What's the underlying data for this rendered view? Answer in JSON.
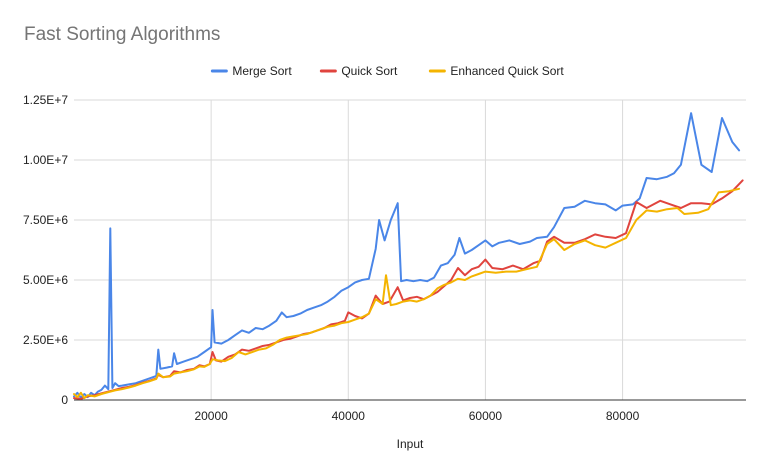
{
  "chart_data": {
    "type": "line",
    "title": "Fast Sorting Algorithms",
    "xlabel": "Input",
    "ylabel": "",
    "xlim": [
      0,
      98000
    ],
    "ylim": [
      0,
      12500000
    ],
    "x_ticks": [
      20000,
      40000,
      60000,
      80000
    ],
    "x_tick_labels": [
      "20000",
      "40000",
      "60000",
      "80000"
    ],
    "y_ticks": [
      0,
      2500000,
      5000000,
      7500000,
      10000000,
      12500000
    ],
    "y_tick_labels": [
      "0",
      "2.50E+6",
      "5.00E+6",
      "7.50E+6",
      "1.00E+7",
      "1.25E+7"
    ],
    "grid": true,
    "legend_position": "top",
    "series": [
      {
        "name": "Merge Sort",
        "color": "#4a86e8",
        "points": [
          [
            0,
            150000
          ],
          [
            500,
            300000
          ],
          [
            1000,
            100000
          ],
          [
            1500,
            250000
          ],
          [
            2000,
            120000
          ],
          [
            2500,
            300000
          ],
          [
            3000,
            200000
          ],
          [
            3500,
            350000
          ],
          [
            4000,
            420000
          ],
          [
            4500,
            600000
          ],
          [
            5000,
            450000
          ],
          [
            5300,
            7150000
          ],
          [
            5600,
            500000
          ],
          [
            6000,
            700000
          ],
          [
            6500,
            580000
          ],
          [
            7000,
            600000
          ],
          [
            8000,
            650000
          ],
          [
            9000,
            700000
          ],
          [
            10000,
            800000
          ],
          [
            11000,
            900000
          ],
          [
            12000,
            1000000
          ],
          [
            12300,
            2100000
          ],
          [
            12600,
            1300000
          ],
          [
            13500,
            1350000
          ],
          [
            14300,
            1400000
          ],
          [
            14600,
            1950000
          ],
          [
            15000,
            1500000
          ],
          [
            16000,
            1600000
          ],
          [
            17000,
            1700000
          ],
          [
            18000,
            1800000
          ],
          [
            19000,
            2000000
          ],
          [
            20000,
            2200000
          ],
          [
            20200,
            3750000
          ],
          [
            20500,
            2400000
          ],
          [
            21500,
            2350000
          ],
          [
            22500,
            2500000
          ],
          [
            23500,
            2700000
          ],
          [
            24500,
            2900000
          ],
          [
            25500,
            2800000
          ],
          [
            26500,
            3000000
          ],
          [
            27500,
            2950000
          ],
          [
            28500,
            3100000
          ],
          [
            29500,
            3300000
          ],
          [
            30300,
            3650000
          ],
          [
            31000,
            3450000
          ],
          [
            32000,
            3500000
          ],
          [
            33000,
            3600000
          ],
          [
            34000,
            3750000
          ],
          [
            35000,
            3850000
          ],
          [
            36000,
            3950000
          ],
          [
            37000,
            4100000
          ],
          [
            38000,
            4300000
          ],
          [
            39000,
            4550000
          ],
          [
            40000,
            4700000
          ],
          [
            41000,
            4900000
          ],
          [
            42000,
            5000000
          ],
          [
            43000,
            5050000
          ],
          [
            44000,
            6300000
          ],
          [
            44500,
            7500000
          ],
          [
            45300,
            6650000
          ],
          [
            46200,
            7500000
          ],
          [
            47200,
            8200000
          ],
          [
            47700,
            4950000
          ],
          [
            48500,
            5000000
          ],
          [
            49500,
            4950000
          ],
          [
            50500,
            5000000
          ],
          [
            51500,
            4950000
          ],
          [
            52500,
            5100000
          ],
          [
            53500,
            5600000
          ],
          [
            54500,
            5700000
          ],
          [
            55500,
            6050000
          ],
          [
            56200,
            6750000
          ],
          [
            57000,
            6100000
          ],
          [
            58000,
            6250000
          ],
          [
            59000,
            6450000
          ],
          [
            60000,
            6650000
          ],
          [
            61000,
            6400000
          ],
          [
            62000,
            6550000
          ],
          [
            63500,
            6650000
          ],
          [
            65000,
            6500000
          ],
          [
            66500,
            6600000
          ],
          [
            67500,
            6750000
          ],
          [
            69000,
            6800000
          ],
          [
            70000,
            7200000
          ],
          [
            71500,
            8000000
          ],
          [
            73000,
            8050000
          ],
          [
            74500,
            8300000
          ],
          [
            76000,
            8200000
          ],
          [
            77500,
            8150000
          ],
          [
            79000,
            7900000
          ],
          [
            80000,
            8100000
          ],
          [
            81500,
            8150000
          ],
          [
            82500,
            8400000
          ],
          [
            83500,
            9250000
          ],
          [
            85000,
            9200000
          ],
          [
            86500,
            9300000
          ],
          [
            87500,
            9450000
          ],
          [
            88500,
            9800000
          ],
          [
            90000,
            11950000
          ],
          [
            91500,
            9800000
          ],
          [
            93000,
            9500000
          ],
          [
            94500,
            11750000
          ],
          [
            96000,
            10750000
          ],
          [
            97000,
            10400000
          ]
        ]
      },
      {
        "name": "Quick Sort",
        "color": "#e0443e",
        "points": [
          [
            0,
            80000
          ],
          [
            1000,
            50000
          ],
          [
            2000,
            150000
          ],
          [
            3000,
            200000
          ],
          [
            4000,
            280000
          ],
          [
            5000,
            350000
          ],
          [
            6000,
            420000
          ],
          [
            7000,
            500000
          ],
          [
            8000,
            550000
          ],
          [
            9000,
            620000
          ],
          [
            10000,
            720000
          ],
          [
            11000,
            800000
          ],
          [
            12000,
            900000
          ],
          [
            12300,
            1050000
          ],
          [
            13000,
            950000
          ],
          [
            14000,
            1000000
          ],
          [
            14600,
            1200000
          ],
          [
            15500,
            1150000
          ],
          [
            16500,
            1250000
          ],
          [
            17500,
            1300000
          ],
          [
            18300,
            1450000
          ],
          [
            19000,
            1400000
          ],
          [
            19800,
            1500000
          ],
          [
            20200,
            2000000
          ],
          [
            20700,
            1650000
          ],
          [
            21500,
            1600000
          ],
          [
            22500,
            1800000
          ],
          [
            23500,
            1900000
          ],
          [
            24500,
            2100000
          ],
          [
            25500,
            2050000
          ],
          [
            26500,
            2150000
          ],
          [
            27500,
            2250000
          ],
          [
            28500,
            2300000
          ],
          [
            29500,
            2400000
          ],
          [
            30500,
            2500000
          ],
          [
            31500,
            2550000
          ],
          [
            32500,
            2650000
          ],
          [
            33500,
            2750000
          ],
          [
            34500,
            2800000
          ],
          [
            35500,
            2900000
          ],
          [
            36500,
            3000000
          ],
          [
            37500,
            3150000
          ],
          [
            38500,
            3200000
          ],
          [
            39500,
            3300000
          ],
          [
            40000,
            3650000
          ],
          [
            41000,
            3500000
          ],
          [
            42000,
            3400000
          ],
          [
            43000,
            3600000
          ],
          [
            44000,
            4350000
          ],
          [
            45000,
            4000000
          ],
          [
            46000,
            4100000
          ],
          [
            47200,
            4700000
          ],
          [
            48000,
            4150000
          ],
          [
            49000,
            4250000
          ],
          [
            50000,
            4300000
          ],
          [
            51000,
            4200000
          ],
          [
            52000,
            4350000
          ],
          [
            53000,
            4500000
          ],
          [
            54000,
            4750000
          ],
          [
            55000,
            5000000
          ],
          [
            56000,
            5500000
          ],
          [
            57000,
            5200000
          ],
          [
            58000,
            5450000
          ],
          [
            59000,
            5550000
          ],
          [
            60000,
            5850000
          ],
          [
            61000,
            5500000
          ],
          [
            62500,
            5450000
          ],
          [
            64000,
            5600000
          ],
          [
            65500,
            5450000
          ],
          [
            67000,
            5700000
          ],
          [
            68000,
            5800000
          ],
          [
            69000,
            6600000
          ],
          [
            70000,
            6800000
          ],
          [
            71500,
            6550000
          ],
          [
            73000,
            6550000
          ],
          [
            74500,
            6700000
          ],
          [
            76000,
            6900000
          ],
          [
            77500,
            6800000
          ],
          [
            79000,
            6750000
          ],
          [
            80500,
            6950000
          ],
          [
            82000,
            8250000
          ],
          [
            83500,
            8000000
          ],
          [
            85500,
            8300000
          ],
          [
            87000,
            8150000
          ],
          [
            88500,
            8000000
          ],
          [
            90000,
            8200000
          ],
          [
            91500,
            8200000
          ],
          [
            93000,
            8150000
          ],
          [
            94500,
            8400000
          ],
          [
            96000,
            8700000
          ],
          [
            97500,
            9150000
          ]
        ]
      },
      {
        "name": "Enhanced Quick Sort",
        "color": "#f4b400",
        "points": [
          [
            0,
            250000
          ],
          [
            500,
            120000
          ],
          [
            1000,
            300000
          ],
          [
            1500,
            80000
          ],
          [
            2000,
            200000
          ],
          [
            3000,
            150000
          ],
          [
            4000,
            250000
          ],
          [
            5000,
            330000
          ],
          [
            6000,
            400000
          ],
          [
            7000,
            450000
          ],
          [
            8000,
            520000
          ],
          [
            9000,
            600000
          ],
          [
            10000,
            700000
          ],
          [
            11000,
            780000
          ],
          [
            12000,
            880000
          ],
          [
            12300,
            1100000
          ],
          [
            13000,
            950000
          ],
          [
            14000,
            980000
          ],
          [
            14600,
            1100000
          ],
          [
            15500,
            1150000
          ],
          [
            16500,
            1200000
          ],
          [
            17500,
            1280000
          ],
          [
            18300,
            1400000
          ],
          [
            19000,
            1380000
          ],
          [
            19800,
            1500000
          ],
          [
            20200,
            1700000
          ],
          [
            21000,
            1650000
          ],
          [
            22000,
            1620000
          ],
          [
            23000,
            1750000
          ],
          [
            24000,
            2000000
          ],
          [
            25000,
            1900000
          ],
          [
            26000,
            2000000
          ],
          [
            27000,
            2100000
          ],
          [
            28000,
            2150000
          ],
          [
            29000,
            2300000
          ],
          [
            30000,
            2500000
          ],
          [
            31000,
            2600000
          ],
          [
            32000,
            2650000
          ],
          [
            33000,
            2700000
          ],
          [
            34000,
            2750000
          ],
          [
            35000,
            2850000
          ],
          [
            36000,
            2950000
          ],
          [
            37000,
            3050000
          ],
          [
            38000,
            3100000
          ],
          [
            39000,
            3200000
          ],
          [
            40000,
            3250000
          ],
          [
            41000,
            3350000
          ],
          [
            42000,
            3450000
          ],
          [
            43000,
            3600000
          ],
          [
            44000,
            4200000
          ],
          [
            45000,
            4000000
          ],
          [
            45500,
            5200000
          ],
          [
            46200,
            3950000
          ],
          [
            47000,
            4000000
          ],
          [
            48000,
            4100000
          ],
          [
            49000,
            4150000
          ],
          [
            50000,
            4100000
          ],
          [
            51000,
            4200000
          ],
          [
            52000,
            4350000
          ],
          [
            53000,
            4650000
          ],
          [
            54000,
            4800000
          ],
          [
            55000,
            4900000
          ],
          [
            56000,
            5050000
          ],
          [
            57000,
            5000000
          ],
          [
            58000,
            5150000
          ],
          [
            59000,
            5250000
          ],
          [
            60000,
            5350000
          ],
          [
            61500,
            5300000
          ],
          [
            63000,
            5350000
          ],
          [
            64500,
            5350000
          ],
          [
            66000,
            5450000
          ],
          [
            67500,
            5550000
          ],
          [
            69000,
            6500000
          ],
          [
            70000,
            6700000
          ],
          [
            71500,
            6250000
          ],
          [
            73000,
            6500000
          ],
          [
            74500,
            6650000
          ],
          [
            76000,
            6450000
          ],
          [
            77500,
            6350000
          ],
          [
            79000,
            6550000
          ],
          [
            80500,
            6750000
          ],
          [
            82000,
            7500000
          ],
          [
            83500,
            7900000
          ],
          [
            85000,
            7850000
          ],
          [
            86500,
            7950000
          ],
          [
            88000,
            8000000
          ],
          [
            89000,
            7750000
          ],
          [
            91000,
            7800000
          ],
          [
            92500,
            7950000
          ],
          [
            94000,
            8650000
          ],
          [
            95500,
            8700000
          ],
          [
            97000,
            8800000
          ]
        ]
      }
    ]
  }
}
